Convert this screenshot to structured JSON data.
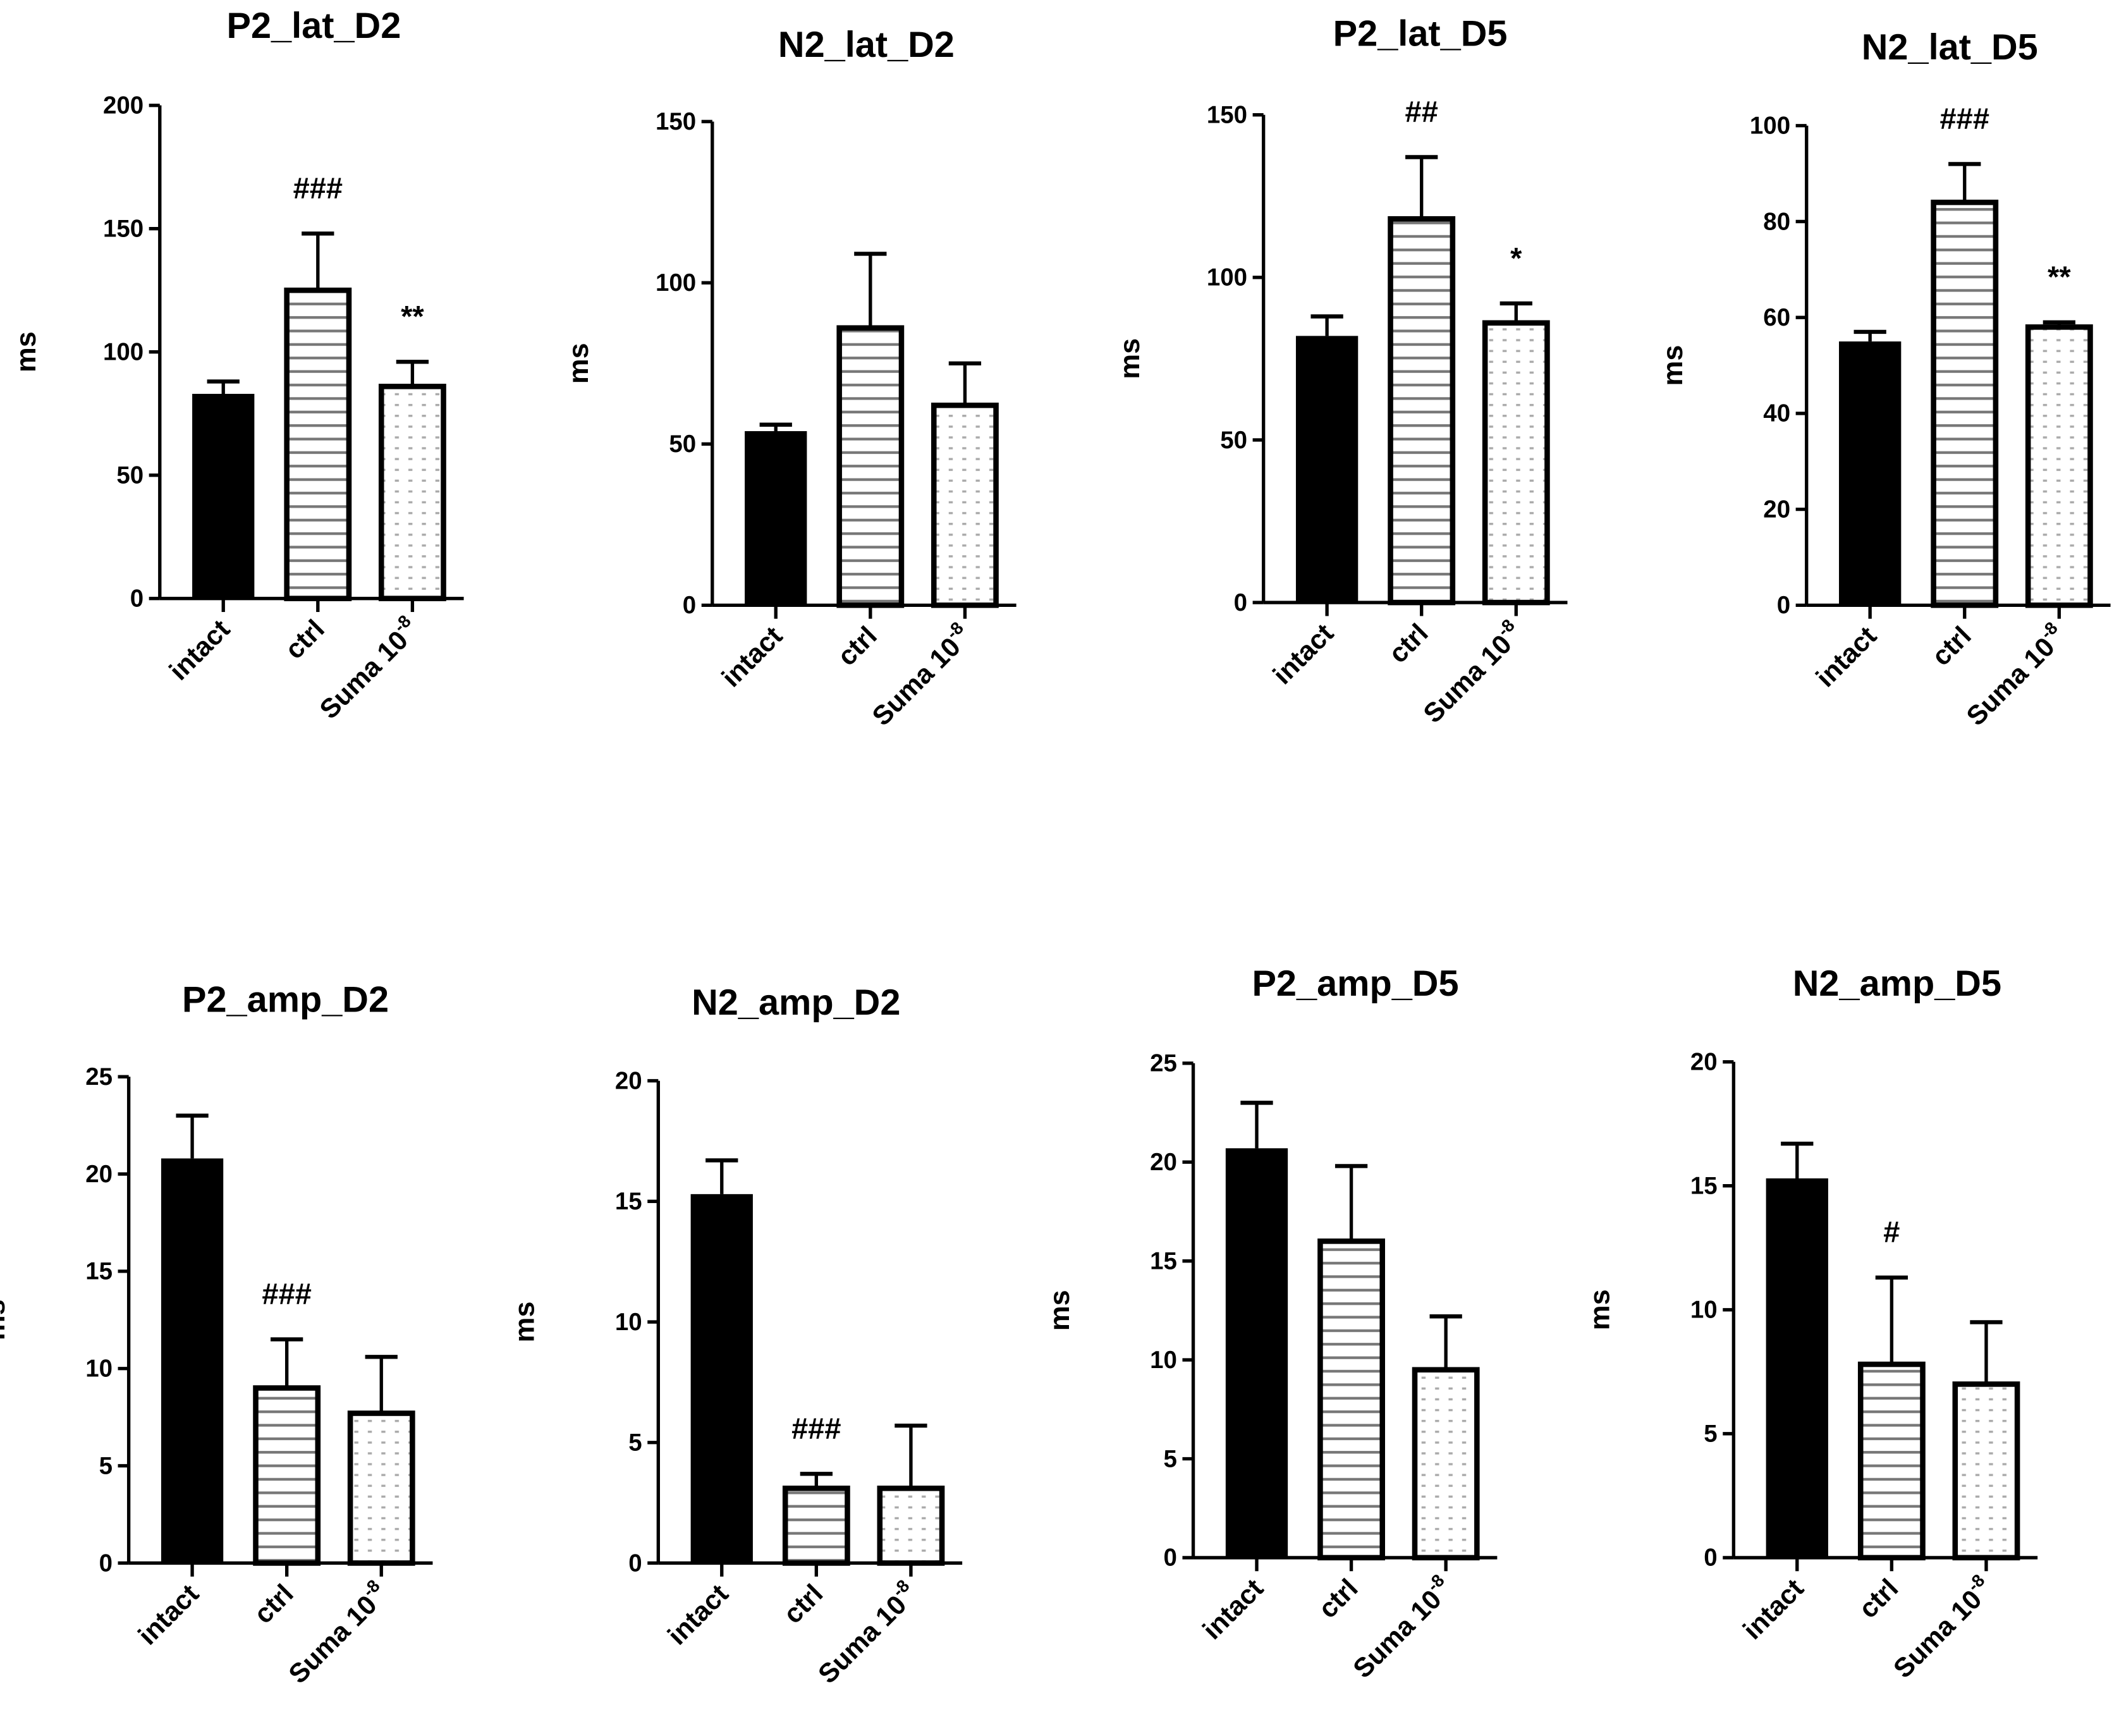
{
  "chart_data": [
    {
      "type": "bar",
      "title": "P2_lat_D2",
      "ylabel": "ms",
      "ylim": [
        0,
        200
      ],
      "yticks": [
        0,
        50,
        100,
        150,
        200
      ],
      "categories": [
        "intact",
        "ctrl",
        "Suma 10^-8"
      ],
      "values": [
        83,
        125,
        86
      ],
      "error_upper": [
        88,
        148,
        96
      ],
      "annotations": [
        "",
        "###",
        "**"
      ]
    },
    {
      "type": "bar",
      "title": "N2_lat_D2",
      "ylabel": "ms",
      "ylim": [
        0,
        150
      ],
      "yticks": [
        0,
        50,
        100,
        150
      ],
      "categories": [
        "intact",
        "ctrl",
        "Suma 10^-8"
      ],
      "values": [
        54,
        86,
        62
      ],
      "error_upper": [
        56,
        109,
        75
      ],
      "annotations": [
        "",
        "",
        ""
      ]
    },
    {
      "type": "bar",
      "title": "P2_lat_D5",
      "ylabel": "ms",
      "ylim": [
        0,
        150
      ],
      "yticks": [
        0,
        50,
        100,
        150
      ],
      "categories": [
        "intact",
        "ctrl",
        "Suma 10^-8"
      ],
      "values": [
        82,
        118,
        86
      ],
      "error_upper": [
        88,
        137,
        92
      ],
      "annotations": [
        "",
        "##",
        "*"
      ]
    },
    {
      "type": "bar",
      "title": "N2_lat_D5",
      "ylabel": "ms",
      "ylim": [
        0,
        100
      ],
      "yticks": [
        0,
        20,
        40,
        60,
        80,
        100
      ],
      "categories": [
        "intact",
        "ctrl",
        "Suma 10^-8"
      ],
      "values": [
        55,
        84,
        58
      ],
      "error_upper": [
        57,
        92,
        59
      ],
      "annotations": [
        "",
        "###",
        "**"
      ]
    },
    {
      "type": "bar",
      "title": "P2_amp_D2",
      "ylabel": "ms",
      "ylim": [
        0,
        25
      ],
      "yticks": [
        0,
        5,
        10,
        15,
        20,
        25
      ],
      "categories": [
        "intact",
        "ctrl",
        "Suma 10^-8"
      ],
      "values": [
        20.8,
        9,
        7.7
      ],
      "error_upper": [
        23,
        11.5,
        10.6
      ],
      "annotations": [
        "",
        "###",
        ""
      ]
    },
    {
      "type": "bar",
      "title": "N2_amp_D2",
      "ylabel": "ms",
      "ylim": [
        0,
        20
      ],
      "yticks": [
        0,
        5,
        10,
        15,
        20
      ],
      "categories": [
        "intact",
        "ctrl",
        "Suma 10^-8"
      ],
      "values": [
        15.3,
        3.1,
        3.1
      ],
      "error_upper": [
        16.7,
        3.7,
        5.7
      ],
      "annotations": [
        "",
        "###",
        ""
      ]
    },
    {
      "type": "bar",
      "title": "P2_amp_D5",
      "ylabel": "ms",
      "ylim": [
        0,
        25
      ],
      "yticks": [
        0,
        5,
        10,
        15,
        20,
        25
      ],
      "categories": [
        "intact",
        "ctrl",
        "Suma 10^-8"
      ],
      "values": [
        20.7,
        16,
        9.5
      ],
      "error_upper": [
        23,
        19.8,
        12.2
      ],
      "annotations": [
        "",
        "",
        ""
      ]
    },
    {
      "type": "bar",
      "title": "N2_amp_D5",
      "ylabel": "ms",
      "ylim": [
        0,
        20
      ],
      "yticks": [
        0,
        5,
        10,
        15,
        20
      ],
      "categories": [
        "intact",
        "ctrl",
        "Suma 10^-8"
      ],
      "values": [
        15.3,
        7.8,
        7
      ],
      "error_upper": [
        16.7,
        11.3,
        9.5
      ],
      "annotations": [
        "",
        "#",
        ""
      ]
    }
  ]
}
